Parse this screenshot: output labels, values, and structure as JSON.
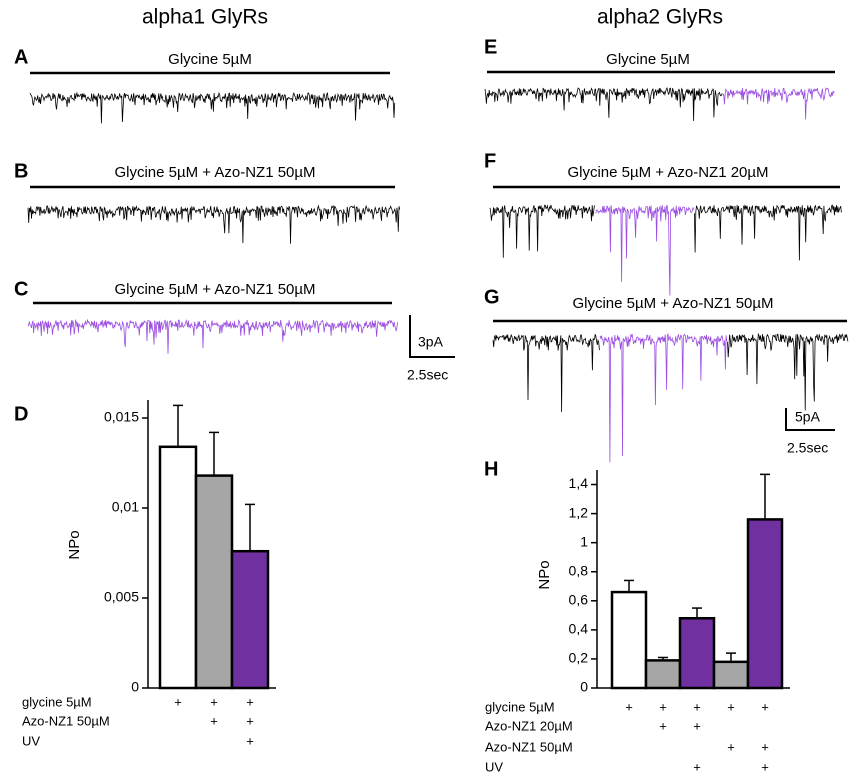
{
  "columns": [
    "alpha1 GlyRs",
    "alpha2 GlyRs"
  ],
  "traces": [
    {
      "label": "A",
      "title": "Glycine 5µM"
    },
    {
      "label": "B",
      "title": "Glycine 5µM + Azo-NZ1 50µM"
    },
    {
      "label": "C",
      "title": "Glycine 5µM + Azo-NZ1 50µM"
    },
    {
      "label": "E",
      "title": "Glycine 5µM"
    },
    {
      "label": "F",
      "title": "Glycine 5µM + Azo-NZ1 20µM"
    },
    {
      "label": "G",
      "title": "Glycine 5µM + Azo-NZ1 50µM"
    }
  ],
  "scale_bars": [
    {
      "y": "3pA",
      "x": "2.5sec"
    },
    {
      "y": "5pA",
      "x": "2.5sec"
    }
  ],
  "chart_data": [
    {
      "type": "bar",
      "label": "D",
      "ylabel": "NPo",
      "values": [
        0.0134,
        0.0118,
        0.0076
      ],
      "errors": [
        0.0023,
        0.0024,
        0.0026
      ],
      "colors": [
        "#ffffff",
        "#a6a6a6",
        "#7030a0"
      ],
      "ylim": [
        0,
        0.016
      ],
      "yticks": [
        0,
        {
          "value": 0.005,
          "label": "0,005"
        },
        {
          "value": 0.01,
          "label": "0,01"
        },
        {
          "value": 0.015,
          "label": "0,015"
        }
      ],
      "conditions": [
        {
          "name": "glycine 5µM",
          "marks": [
            "+",
            "+",
            "+"
          ]
        },
        {
          "name": "Azo-NZ1 50µM",
          "marks": [
            null,
            "+",
            "+"
          ]
        },
        {
          "name": "UV",
          "marks": [
            null,
            null,
            "+"
          ]
        }
      ]
    },
    {
      "type": "bar",
      "label": "H",
      "ylabel": "NPo",
      "values": [
        0.66,
        0.19,
        0.48,
        0.18,
        1.16
      ],
      "errors": [
        0.08,
        0.02,
        0.07,
        0.06,
        0.31
      ],
      "colors": [
        "#ffffff",
        "#a6a6a6",
        "#7030a0",
        "#a6a6a6",
        "#7030a0"
      ],
      "ylim": [
        0,
        1.5
      ],
      "yticks": [
        0,
        {
          "value": 0.2,
          "label": "0,2"
        },
        {
          "value": 0.4,
          "label": "0,4"
        },
        {
          "value": 0.6,
          "label": "0,6"
        },
        {
          "value": 0.8,
          "label": "0,8"
        },
        1,
        {
          "value": 1.2,
          "label": "1,2"
        },
        {
          "value": 1.4,
          "label": "1,4"
        }
      ],
      "conditions": [
        {
          "name": "glycine 5µM",
          "marks": [
            "+",
            "+",
            "+",
            "+",
            "+"
          ]
        },
        {
          "name": "Azo-NZ1 20µM",
          "marks": [
            null,
            "+",
            "+",
            null,
            null
          ]
        },
        {
          "name": "Azo-NZ1 50µM",
          "marks": [
            null,
            null,
            null,
            "+",
            "+"
          ]
        },
        {
          "name": "UV",
          "marks": [
            null,
            null,
            "+",
            null,
            "+"
          ]
        }
      ]
    }
  ]
}
